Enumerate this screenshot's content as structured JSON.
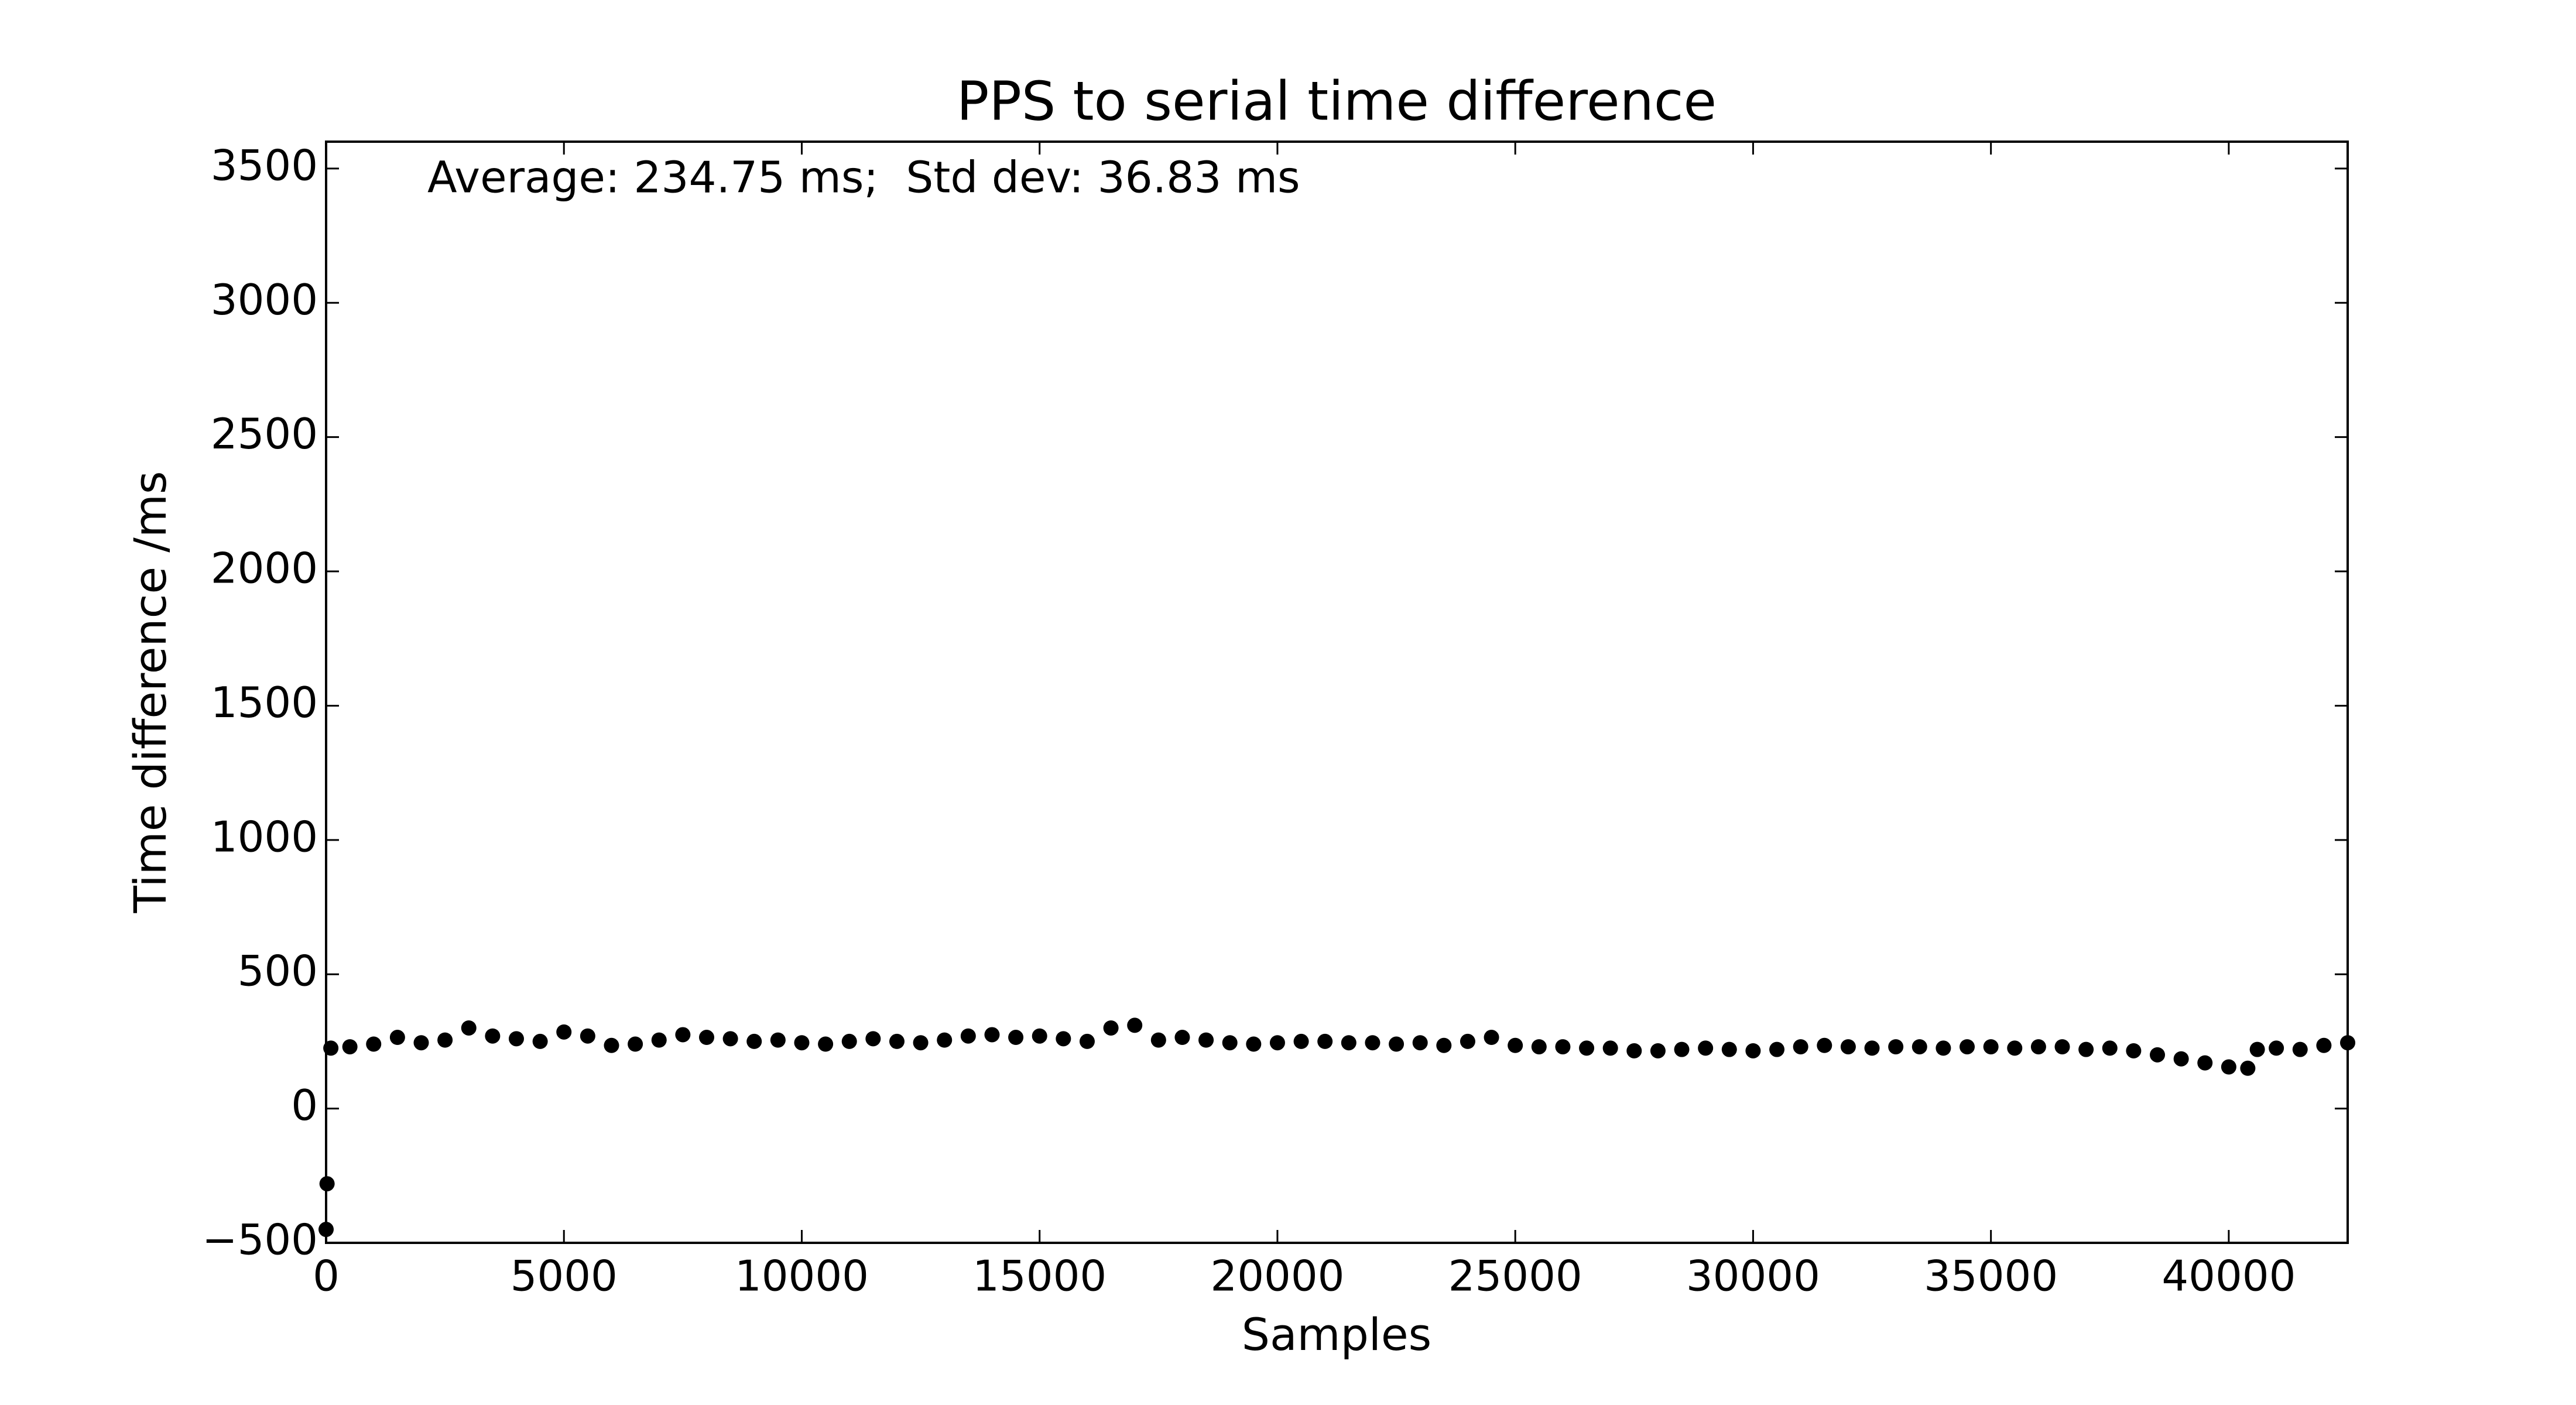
{
  "chart_data": {
    "type": "scatter",
    "title": "PPS to serial time difference",
    "annotation": "Average: 234.75 ms;  Std dev: 36.83 ms",
    "x_label": "Samples",
    "y_label": "Time difference /ms",
    "color": "#000000",
    "x": [
      0,
      20,
      100,
      500,
      1000,
      1500,
      2000,
      2500,
      3000,
      3500,
      4000,
      4500,
      5000,
      5500,
      6000,
      6500,
      7000,
      7500,
      8000,
      8500,
      9000,
      9500,
      10000,
      10500,
      11000,
      11500,
      12000,
      12500,
      13000,
      13500,
      14000,
      14500,
      15000,
      15500,
      16000,
      16500,
      17000,
      17500,
      18000,
      18500,
      19000,
      19500,
      20000,
      20500,
      21000,
      21500,
      22000,
      22500,
      23000,
      23500,
      24000,
      24500,
      25000,
      25500,
      26000,
      26500,
      27000,
      27500,
      28000,
      28500,
      29000,
      29500,
      30000,
      30500,
      31000,
      31500,
      32000,
      32500,
      33000,
      33500,
      34000,
      34500,
      35000,
      35500,
      36000,
      36500,
      37000,
      37500,
      38000,
      38500,
      39000,
      39500,
      40000,
      40400,
      40600,
      41000,
      41500,
      42000,
      42500
    ],
    "values": [
      -450,
      -280,
      225,
      230,
      240,
      265,
      245,
      255,
      300,
      270,
      260,
      250,
      285,
      270,
      235,
      240,
      255,
      275,
      265,
      260,
      250,
      255,
      245,
      240,
      250,
      260,
      250,
      245,
      255,
      270,
      275,
      265,
      270,
      260,
      250,
      300,
      310,
      255,
      265,
      255,
      245,
      240,
      245,
      250,
      250,
      245,
      245,
      240,
      245,
      235,
      250,
      265,
      235,
      230,
      230,
      225,
      225,
      215,
      215,
      220,
      225,
      220,
      215,
      220,
      230,
      235,
      230,
      225,
      230,
      230,
      225,
      230,
      230,
      225,
      230,
      230,
      220,
      225,
      215,
      200,
      185,
      170,
      155,
      150,
      220,
      225,
      220,
      235,
      245
    ],
    "xlim": [
      0,
      42500
    ],
    "xticks": [
      0,
      5000,
      10000,
      15000,
      20000,
      25000,
      30000,
      35000,
      40000
    ],
    "ylim": [
      -500,
      3600
    ],
    "yticks": [
      {
        "value": -500,
        "label": "−500"
      },
      0,
      500,
      1000,
      1500,
      2000,
      2500,
      3000,
      3500
    ]
  }
}
